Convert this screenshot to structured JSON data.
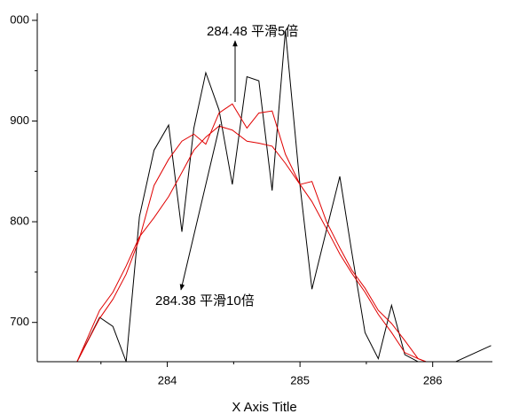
{
  "chart_data": {
    "type": "line",
    "x_axis_label": "X Axis Title",
    "x": [
      283.32,
      283.49,
      283.59,
      283.69,
      283.79,
      283.9,
      284.01,
      284.11,
      284.2,
      284.29,
      284.39,
      284.49,
      284.6,
      284.69,
      284.79,
      284.89,
      285.0,
      285.09,
      285.2,
      285.3,
      285.39,
      285.49,
      285.59,
      285.69,
      285.79,
      285.89,
      285.99,
      286.44
    ],
    "series": [
      {
        "color": "#000000",
        "values": [
          661,
          705,
          696,
          661,
          805,
          871,
          896,
          790,
          893,
          948,
          911,
          837,
          944,
          940,
          831,
          990,
          836,
          733,
          792,
          845,
          770,
          690,
          664,
          717,
          668,
          661,
          650,
          677
        ]
      },
      {
        "color": "#e00000",
        "values": [
          661,
          704,
          723,
          748,
          783,
          836,
          862,
          880,
          887,
          877,
          908,
          917,
          893,
          908,
          910,
          867,
          837,
          840,
          800,
          774,
          752,
          734,
          712,
          699,
          682,
          664,
          659,
          null
        ]
      },
      {
        "color": "#e00000",
        "values": [
          661,
          712,
          730,
          756,
          785,
          804,
          825,
          849,
          871,
          884,
          895,
          891,
          880,
          878,
          875,
          858,
          837,
          820,
          793,
          768,
          749,
          730,
          708,
          690,
          670,
          664,
          659,
          null
        ]
      }
    ],
    "annotations": [
      "284.48 平滑5倍",
      "284.38 平滑10倍"
    ],
    "xlim": [
      283.02,
      286.45
    ],
    "xticks": [
      284,
      285,
      286
    ],
    "xminor": [
      283.5,
      284.5,
      285.5
    ],
    "ylim": [
      661,
      1007
    ],
    "yticks": [
      700,
      800,
      900,
      {
        "value": 1000,
        "label": "000"
      }
    ],
    "yminor": [
      750,
      850,
      950
    ]
  }
}
